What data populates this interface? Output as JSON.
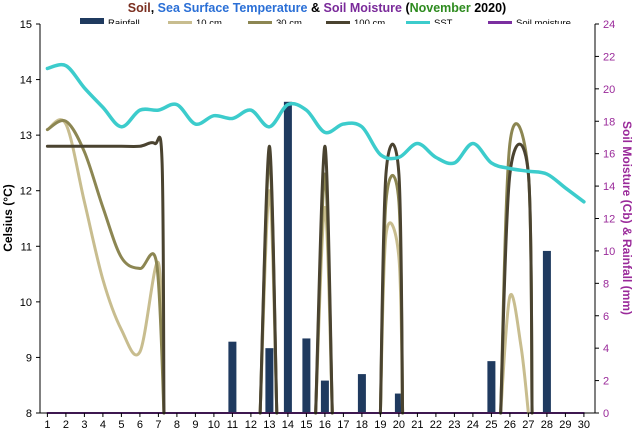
{
  "chart_data": {
    "type": "bar+line",
    "title_parts": [
      {
        "text": "Soil",
        "color": "#7a2e1f"
      },
      {
        "text": ", ",
        "color": "#000000"
      },
      {
        "text": "Sea Surface Temperature",
        "color": "#2a6fd6"
      },
      {
        "text": " & ",
        "color": "#000000"
      },
      {
        "text": "Soil Moisture",
        "color": "#7a2a9a"
      },
      {
        "text": " (",
        "color": "#000000"
      },
      {
        "text": "November",
        "color": "#2e8b1f"
      },
      {
        "text": " 2020)",
        "color": "#000000"
      }
    ],
    "ylabel_left": "Celsius (°C)",
    "ylabel_right": "Soil Moisture (Cb) & Rainfall (mm)",
    "ylim_left": [
      8,
      15
    ],
    "yticks_left": [
      8,
      9,
      10,
      11,
      12,
      13,
      14,
      15
    ],
    "ylim_right": [
      0,
      24
    ],
    "yticks_right": [
      0,
      2,
      4,
      6,
      8,
      10,
      12,
      14,
      16,
      18,
      20,
      22,
      24
    ],
    "x": [
      1,
      2,
      3,
      4,
      5,
      6,
      7,
      8,
      9,
      10,
      11,
      12,
      13,
      14,
      15,
      16,
      17,
      18,
      19,
      20,
      21,
      22,
      23,
      24,
      25,
      26,
      27,
      28,
      29,
      30
    ],
    "legend": [
      {
        "name": "Rainfall",
        "color": "#1f3a5f",
        "kind": "bar"
      },
      {
        "name": "10 cm",
        "color": "#c8bd8f",
        "kind": "line"
      },
      {
        "name": "30 cm",
        "color": "#8c8652",
        "kind": "line"
      },
      {
        "name": "100 cm",
        "color": "#4a4330",
        "kind": "line"
      },
      {
        "name": "SST",
        "color": "#3ccccc",
        "kind": "line"
      },
      {
        "name": "Soil moisture",
        "color": "#7b2fa0",
        "kind": "line"
      }
    ],
    "series": [
      {
        "name": "Rainfall",
        "axis": "right",
        "kind": "bar",
        "points": [
          [
            11,
            4.4
          ],
          [
            13,
            4.0
          ],
          [
            14,
            19.2
          ],
          [
            15,
            4.6
          ],
          [
            16,
            2.0
          ],
          [
            18,
            2.4
          ],
          [
            20,
            1.2
          ],
          [
            25,
            3.2
          ],
          [
            28,
            10.0
          ]
        ]
      },
      {
        "name": "10 cm",
        "axis": "left",
        "segments": [
          [
            [
              1,
              13.1
            ],
            [
              2,
              13.2
            ],
            [
              3,
              11.8
            ],
            [
              4,
              10.4
            ],
            [
              5,
              9.5
            ],
            [
              6,
              9.1
            ],
            [
              7,
              10.7
            ],
            [
              7.3,
              8.0
            ]
          ],
          [
            [
              12.5,
              8.0
            ],
            [
              13,
              12.0
            ],
            [
              13.4,
              8.0
            ]
          ],
          [
            [
              15.5,
              8.0
            ],
            [
              16,
              11.7
            ],
            [
              16.4,
              8.0
            ]
          ],
          [
            [
              19,
              8.0
            ],
            [
              19.3,
              11.2
            ],
            [
              20,
              10.8
            ],
            [
              20.2,
              8.0
            ]
          ],
          [
            [
              25.5,
              8.0
            ],
            [
              26,
              10.1
            ],
            [
              26.6,
              9.2
            ],
            [
              27,
              8.0
            ]
          ]
        ]
      },
      {
        "name": "30 cm",
        "axis": "left",
        "segments": [
          [
            [
              1,
              13.1
            ],
            [
              2,
              13.25
            ],
            [
              3,
              12.7
            ],
            [
              4,
              11.7
            ],
            [
              5,
              10.8
            ],
            [
              6,
              10.6
            ],
            [
              6.9,
              10.7
            ],
            [
              7.3,
              8.0
            ]
          ],
          [
            [
              12.5,
              8.0
            ],
            [
              13,
              12.6
            ],
            [
              13.4,
              8.0
            ]
          ],
          [
            [
              15.5,
              8.0
            ],
            [
              16,
              12.3
            ],
            [
              16.4,
              8.0
            ]
          ],
          [
            [
              19,
              8.0
            ],
            [
              19.3,
              11.8
            ],
            [
              20,
              11.8
            ],
            [
              20.2,
              8.0
            ]
          ],
          [
            [
              25.5,
              8.0
            ],
            [
              26,
              12.85
            ],
            [
              27,
              12.3
            ],
            [
              27.2,
              8.0
            ]
          ]
        ]
      },
      {
        "name": "100 cm",
        "axis": "left",
        "segments": [
          [
            [
              1,
              12.8
            ],
            [
              2,
              12.8
            ],
            [
              3,
              12.8
            ],
            [
              4,
              12.8
            ],
            [
              5,
              12.8
            ],
            [
              6,
              12.8
            ],
            [
              6.8,
              12.85
            ],
            [
              7.2,
              12.5
            ],
            [
              7.3,
              8.0
            ]
          ],
          [
            [
              12.5,
              8.0
            ],
            [
              13,
              12.8
            ],
            [
              13.4,
              8.0
            ]
          ],
          [
            [
              15.5,
              8.0
            ],
            [
              16,
              12.8
            ],
            [
              16.4,
              8.0
            ]
          ],
          [
            [
              19,
              8.0
            ],
            [
              19.3,
              12.3
            ],
            [
              20,
              12.3
            ],
            [
              20.2,
              8.0
            ]
          ],
          [
            [
              25.5,
              8.0
            ],
            [
              26,
              12.3
            ],
            [
              27,
              12.3
            ],
            [
              27.2,
              8.0
            ]
          ]
        ]
      },
      {
        "name": "SST",
        "axis": "left",
        "points": [
          [
            1,
            14.2
          ],
          [
            2,
            14.25
          ],
          [
            3,
            13.85
          ],
          [
            4,
            13.5
          ],
          [
            5,
            13.15
          ],
          [
            6,
            13.45
          ],
          [
            7,
            13.45
          ],
          [
            8,
            13.55
          ],
          [
            9,
            13.2
          ],
          [
            10,
            13.35
          ],
          [
            11,
            13.3
          ],
          [
            12,
            13.45
          ],
          [
            13,
            13.15
          ],
          [
            14,
            13.55
          ],
          [
            15,
            13.45
          ],
          [
            16,
            13.05
          ],
          [
            17,
            13.2
          ],
          [
            18,
            13.15
          ],
          [
            19,
            12.65
          ],
          [
            20,
            12.6
          ],
          [
            21,
            12.85
          ],
          [
            22,
            12.6
          ],
          [
            23,
            12.5
          ],
          [
            24,
            12.85
          ],
          [
            25,
            12.5
          ],
          [
            26,
            12.4
          ],
          [
            27,
            12.35
          ],
          [
            28,
            12.3
          ],
          [
            29,
            12.05
          ],
          [
            30,
            11.8
          ]
        ]
      },
      {
        "name": "Soil moisture",
        "axis": "right",
        "points": [
          [
            1,
            0
          ],
          [
            30,
            0
          ]
        ]
      }
    ]
  }
}
